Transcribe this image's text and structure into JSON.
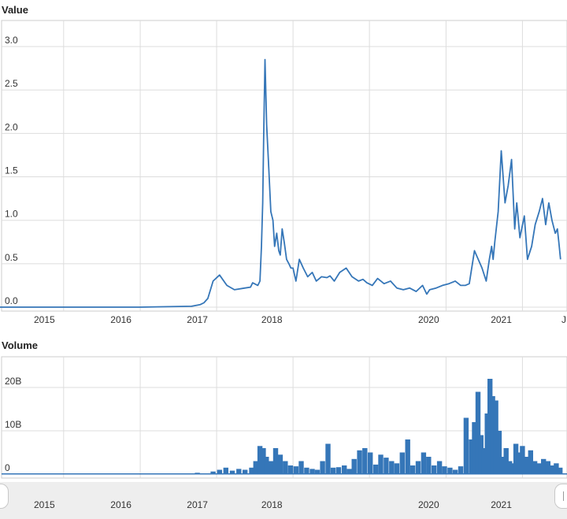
{
  "value_panel": {
    "title": "Value"
  },
  "volume_panel": {
    "title": "Volume"
  },
  "colors": {
    "series": "#3576b8",
    "grid": "#dddddd",
    "axis_text": "#333333",
    "navigator": "#eeeeee"
  },
  "chart_data": [
    {
      "type": "line",
      "title": "Value",
      "xlabel": "",
      "ylabel": "",
      "x_tick_labels": [
        "2015",
        "2016",
        "2017",
        "2018",
        "2020",
        "2021",
        "J"
      ],
      "y_tick_labels": [
        "0.0",
        "0.5",
        "1.0",
        "1.5",
        "2.0",
        "2.5",
        "3.0"
      ],
      "xlim": [
        "2014-08-01",
        "2021-12-31"
      ],
      "ylim": [
        0,
        3.3
      ],
      "grid": true,
      "series": [
        {
          "x": [
            "2014-08-01",
            "2015-06-01",
            "2016-06-01",
            "2017-02-01",
            "2017-03-15",
            "2017-04-01",
            "2017-04-20",
            "2017-05-15",
            "2017-06-15",
            "2017-07-20",
            "2017-08-25",
            "2017-10-15",
            "2017-11-10",
            "2017-11-20",
            "2017-12-15",
            "2017-12-25",
            "2018-01-01",
            "2018-01-07",
            "2018-01-12",
            "2018-01-18",
            "2018-01-26",
            "2018-02-05",
            "2018-02-15",
            "2018-02-25",
            "2018-03-05",
            "2018-03-15",
            "2018-03-25",
            "2018-04-01",
            "2018-04-10",
            "2018-04-20",
            "2018-05-01",
            "2018-05-12",
            "2018-05-22",
            "2018-06-01",
            "2018-06-15",
            "2018-07-01",
            "2018-07-20",
            "2018-08-10",
            "2018-09-01",
            "2018-09-20",
            "2018-10-15",
            "2018-11-10",
            "2018-11-25",
            "2018-12-15",
            "2019-01-10",
            "2019-02-10",
            "2019-03-10",
            "2019-04-10",
            "2019-05-01",
            "2019-05-20",
            "2019-06-15",
            "2019-07-10",
            "2019-08-10",
            "2019-09-10",
            "2019-10-10",
            "2019-11-10",
            "2019-12-10",
            "2020-01-10",
            "2020-02-10",
            "2020-03-01",
            "2020-03-15",
            "2020-04-15",
            "2020-05-15",
            "2020-06-15",
            "2020-07-15",
            "2020-08-10",
            "2020-09-01",
            "2020-09-20",
            "2020-10-15",
            "2020-11-20",
            "2020-12-10",
            "2020-12-25",
            "2021-01-05",
            "2021-01-12",
            "2021-01-20",
            "2021-02-05",
            "2021-02-20",
            "2021-03-10",
            "2021-03-25",
            "2021-04-10",
            "2021-04-25",
            "2021-05-05",
            "2021-05-20",
            "2021-06-10",
            "2021-06-25",
            "2021-07-15",
            "2021-08-01",
            "2021-08-20",
            "2021-09-05",
            "2021-09-20",
            "2021-10-05",
            "2021-10-20",
            "2021-11-05",
            "2021-11-15",
            "2021-11-22",
            "2021-11-30"
          ],
          "y": [
            0.0,
            0.0,
            0.0,
            0.01,
            0.03,
            0.05,
            0.1,
            0.3,
            0.37,
            0.25,
            0.2,
            0.22,
            0.23,
            0.28,
            0.25,
            0.3,
            0.7,
            1.2,
            2.0,
            2.85,
            2.1,
            1.6,
            1.1,
            1.0,
            0.7,
            0.85,
            0.65,
            0.6,
            0.9,
            0.75,
            0.55,
            0.5,
            0.45,
            0.45,
            0.3,
            0.55,
            0.45,
            0.35,
            0.4,
            0.3,
            0.35,
            0.34,
            0.36,
            0.3,
            0.4,
            0.45,
            0.35,
            0.3,
            0.32,
            0.28,
            0.25,
            0.33,
            0.27,
            0.3,
            0.22,
            0.2,
            0.22,
            0.18,
            0.25,
            0.15,
            0.2,
            0.22,
            0.25,
            0.27,
            0.3,
            0.25,
            0.25,
            0.27,
            0.65,
            0.45,
            0.3,
            0.55,
            0.7,
            0.55,
            0.75,
            1.1,
            1.8,
            1.2,
            1.4,
            1.7,
            0.9,
            1.2,
            0.8,
            1.05,
            0.55,
            0.7,
            0.95,
            1.1,
            1.25,
            0.95,
            1.2,
            1.0,
            0.85,
            0.9,
            0.75,
            0.55
          ]
        }
      ]
    },
    {
      "type": "bar",
      "title": "Volume",
      "xlabel": "",
      "ylabel": "",
      "x_tick_labels": [
        "2015",
        "2016",
        "2017",
        "2018",
        "2020",
        "2021"
      ],
      "y_tick_labels": [
        "0",
        "10B",
        "20B"
      ],
      "ylim": [
        0,
        28
      ],
      "grid": true,
      "series": [
        {
          "x": [
            "2017-03-01",
            "2017-05-15",
            "2017-06-15",
            "2017-07-15",
            "2017-08-15",
            "2017-09-15",
            "2017-10-15",
            "2017-11-15",
            "2017-12-05",
            "2017-12-25",
            "2018-01-10",
            "2018-01-25",
            "2018-02-15",
            "2018-03-10",
            "2018-04-01",
            "2018-04-25",
            "2018-05-20",
            "2018-06-15",
            "2018-07-10",
            "2018-08-05",
            "2018-09-01",
            "2018-09-25",
            "2018-10-20",
            "2018-11-15",
            "2018-12-10",
            "2019-01-05",
            "2019-02-01",
            "2019-02-25",
            "2019-03-20",
            "2019-04-15",
            "2019-05-10",
            "2019-06-05",
            "2019-07-01",
            "2019-07-25",
            "2019-08-20",
            "2019-09-15",
            "2019-10-10",
            "2019-11-05",
            "2019-12-01",
            "2019-12-25",
            "2020-01-20",
            "2020-02-15",
            "2020-03-10",
            "2020-04-05",
            "2020-05-01",
            "2020-05-25",
            "2020-06-20",
            "2020-07-15",
            "2020-08-10",
            "2020-09-05",
            "2020-09-30",
            "2020-10-15",
            "2020-11-01",
            "2020-11-15",
            "2020-12-01",
            "2020-12-15",
            "2020-12-28",
            "2021-01-10",
            "2021-01-25",
            "2021-02-10",
            "2021-02-25",
            "2021-03-15",
            "2021-04-01",
            "2021-04-15",
            "2021-05-01",
            "2021-05-15",
            "2021-06-01",
            "2021-06-20",
            "2021-07-10",
            "2021-07-30",
            "2021-08-20",
            "2021-09-10",
            "2021-10-01",
            "2021-10-20",
            "2021-11-10",
            "2021-11-28"
          ],
          "y": [
            0.3,
            0.6,
            1.0,
            1.5,
            0.8,
            1.2,
            1.0,
            1.5,
            3.0,
            6.5,
            6.0,
            4.0,
            3.0,
            6.0,
            4.5,
            3.0,
            2.0,
            1.8,
            3.0,
            1.5,
            1.2,
            1.0,
            3.0,
            7.0,
            1.5,
            1.6,
            2.0,
            1.2,
            3.5,
            5.5,
            6.0,
            5.0,
            2.2,
            4.5,
            3.8,
            3.0,
            2.5,
            5.0,
            8.0,
            2.0,
            3.0,
            5.0,
            4.0,
            2.0,
            3.0,
            1.8,
            1.5,
            1.0,
            1.8,
            13.0,
            8.0,
            12.0,
            19.0,
            9.0,
            6.0,
            14.0,
            22.0,
            18.0,
            17.0,
            10.0,
            4.0,
            6.0,
            3.0,
            2.5,
            7.0,
            5.0,
            6.5,
            4.0,
            5.5,
            3.0,
            2.5,
            3.5,
            3.0,
            2.0,
            2.5,
            1.5
          ]
        }
      ]
    }
  ]
}
